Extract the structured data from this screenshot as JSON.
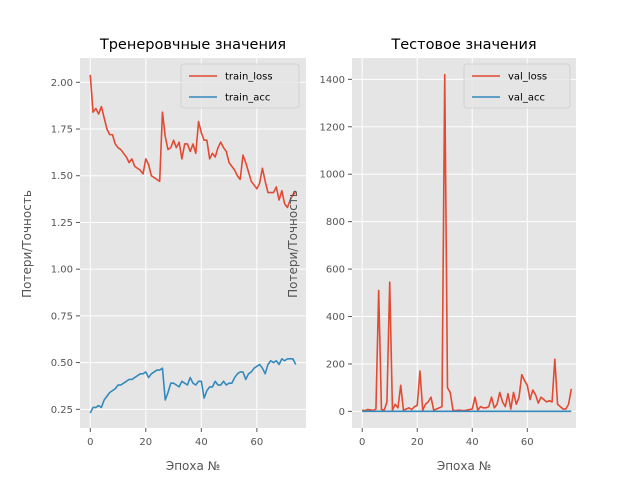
{
  "colors": {
    "background": "#ffffff",
    "plot_background": "#e5e5e5",
    "grid": "#ffffff",
    "red": "#e24a33",
    "blue": "#348abd",
    "text": "#555555"
  },
  "chart_data": [
    {
      "type": "line",
      "title": "Тренеровчные значения",
      "xlabel": "Эпоха №",
      "ylabel": "Потери/Точность",
      "xlim": [
        -3.7,
        77.7
      ],
      "ylim": [
        0.15,
        2.13
      ],
      "xticks": [
        0,
        20,
        40,
        60
      ],
      "xtick_labels": [
        "0",
        "20",
        "40",
        "60"
      ],
      "yticks": [
        0.25,
        0.5,
        0.75,
        1.0,
        1.25,
        1.5,
        1.75,
        2.0
      ],
      "ytick_labels": [
        "0.25",
        "0.50",
        "0.75",
        "1.00",
        "1.25",
        "1.50",
        "1.75",
        "2.00"
      ],
      "grid": true,
      "legend_position": "top-right",
      "series": [
        {
          "name": "train_loss",
          "color": "#e24a33",
          "values": [
            2.04,
            1.84,
            1.86,
            1.83,
            1.87,
            1.81,
            1.75,
            1.72,
            1.72,
            1.67,
            1.65,
            1.64,
            1.62,
            1.6,
            1.57,
            1.59,
            1.55,
            1.54,
            1.53,
            1.51,
            1.59,
            1.56,
            1.5,
            1.49,
            1.48,
            1.47,
            1.84,
            1.71,
            1.64,
            1.65,
            1.69,
            1.65,
            1.68,
            1.59,
            1.67,
            1.67,
            1.63,
            1.67,
            1.62,
            1.79,
            1.73,
            1.69,
            1.69,
            1.59,
            1.62,
            1.6,
            1.65,
            1.68,
            1.65,
            1.63,
            1.57,
            1.55,
            1.53,
            1.5,
            1.48,
            1.61,
            1.57,
            1.52,
            1.47,
            1.45,
            1.43,
            1.46,
            1.54,
            1.47,
            1.41,
            1.41,
            1.41,
            1.44,
            1.37,
            1.42,
            1.35,
            1.33,
            1.37,
            1.4,
            1.41
          ]
        },
        {
          "name": "train_acc",
          "color": "#348abd",
          "values": [
            0.23,
            0.26,
            0.26,
            0.27,
            0.26,
            0.3,
            0.32,
            0.34,
            0.35,
            0.36,
            0.38,
            0.38,
            0.39,
            0.4,
            0.41,
            0.41,
            0.42,
            0.43,
            0.44,
            0.44,
            0.45,
            0.42,
            0.44,
            0.45,
            0.46,
            0.46,
            0.47,
            0.3,
            0.34,
            0.39,
            0.39,
            0.38,
            0.37,
            0.4,
            0.39,
            0.38,
            0.42,
            0.39,
            0.38,
            0.4,
            0.4,
            0.31,
            0.35,
            0.37,
            0.37,
            0.4,
            0.38,
            0.38,
            0.4,
            0.38,
            0.39,
            0.39,
            0.42,
            0.44,
            0.45,
            0.45,
            0.41,
            0.44,
            0.45,
            0.47,
            0.48,
            0.49,
            0.47,
            0.44,
            0.49,
            0.51,
            0.5,
            0.51,
            0.49,
            0.52,
            0.51,
            0.52,
            0.52,
            0.52,
            0.49
          ]
        }
      ]
    },
    {
      "type": "line",
      "title": "Тестовое значения",
      "xlabel": "Эпоха №",
      "ylabel": "Потери/Точность",
      "xlim": [
        -3.7,
        77.7
      ],
      "ylim": [
        -70,
        1490
      ],
      "xticks": [
        0,
        20,
        40,
        60
      ],
      "xtick_labels": [
        "0",
        "20",
        "40",
        "60"
      ],
      "yticks": [
        0,
        200,
        400,
        600,
        800,
        1000,
        1200,
        1400
      ],
      "ytick_labels": [
        "0",
        "200",
        "400",
        "600",
        "800",
        "1000",
        "1200",
        "1400"
      ],
      "grid": true,
      "legend_position": "top-right",
      "series": [
        {
          "name": "val_loss",
          "color": "#e24a33",
          "values": [
            5,
            3,
            8,
            6,
            4,
            10,
            510,
            8,
            5,
            40,
            545,
            5,
            30,
            15,
            110,
            5,
            10,
            15,
            8,
            20,
            25,
            170,
            5,
            30,
            40,
            60,
            5,
            10,
            15,
            20,
            1420,
            100,
            80,
            5,
            3,
            5,
            4,
            3,
            5,
            8,
            10,
            60,
            5,
            20,
            15,
            15,
            20,
            60,
            15,
            30,
            80,
            40,
            20,
            75,
            10,
            80,
            30,
            60,
            155,
            130,
            110,
            50,
            90,
            70,
            35,
            60,
            50,
            40,
            45,
            40,
            220,
            30,
            20,
            10,
            10,
            30,
            95
          ]
        },
        {
          "name": "val_acc",
          "color": "#348abd",
          "values": [
            0.2,
            0.2,
            0.2,
            0.2,
            0.2,
            0.2,
            0.2,
            0.2,
            0.2,
            0.2,
            0.2,
            0.2,
            0.2,
            0.2,
            0.2,
            0.2,
            0.2,
            0.2,
            0.2,
            0.2,
            0.2,
            0.2,
            0.2,
            0.2,
            0.2,
            0.2,
            0.2,
            0.2,
            0.2,
            0.2,
            0.2,
            0.2,
            0.2,
            0.2,
            0.2,
            0.2,
            0.2,
            0.2,
            0.2,
            0.2,
            0.2,
            0.2,
            0.2,
            0.2,
            0.2,
            0.2,
            0.2,
            0.2,
            0.2,
            0.2,
            0.2,
            0.2,
            0.2,
            0.2,
            0.2,
            0.2,
            0.2,
            0.2,
            0.2,
            0.2,
            0.2,
            0.2,
            0.2,
            0.2,
            0.2,
            0.2,
            0.2,
            0.2,
            0.2,
            0.2,
            0.2,
            0.2,
            0.2,
            0.2,
            0.2,
            0.2,
            0.2
          ]
        }
      ]
    }
  ]
}
